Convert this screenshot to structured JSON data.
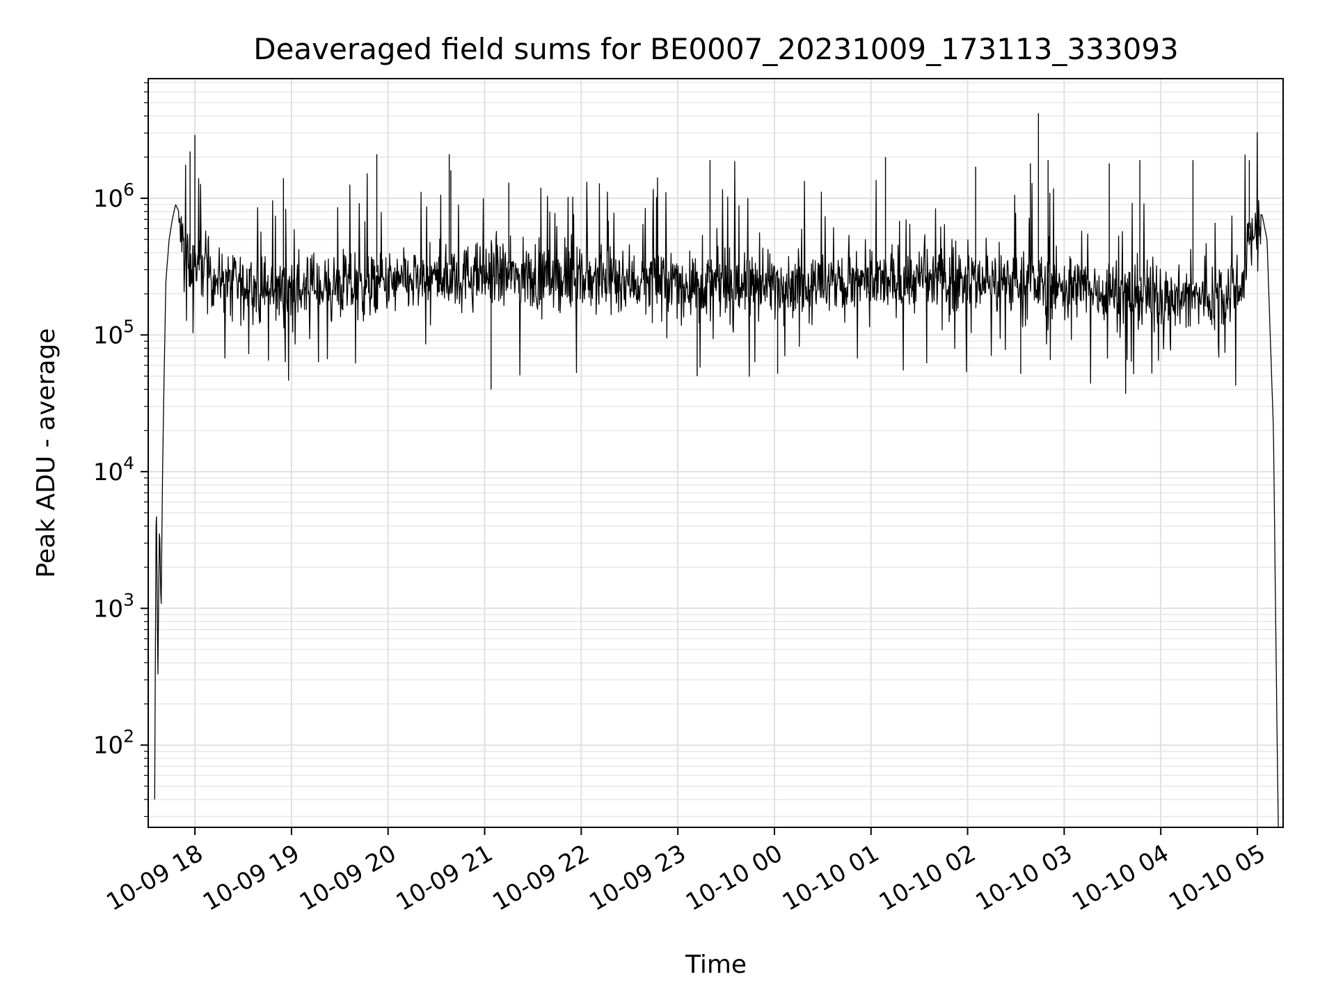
{
  "chart_data": {
    "type": "line",
    "title": "Deaveraged field sums for BE0007_20231009_173113_333093",
    "xlabel": "Time",
    "ylabel": "Peak ADU - average",
    "yscale": "log",
    "grid": true,
    "grid_minor": true,
    "xlim": [
      "2023-10-09 17:31",
      "2023-10-10 05:16"
    ],
    "ylim": [
      25,
      7500000
    ],
    "x_ticks": [
      {
        "value": "2023-10-09 18:00",
        "label": "10-09 18"
      },
      {
        "value": "2023-10-09 19:00",
        "label": "10-09 19"
      },
      {
        "value": "2023-10-09 20:00",
        "label": "10-09 20"
      },
      {
        "value": "2023-10-09 21:00",
        "label": "10-09 21"
      },
      {
        "value": "2023-10-09 22:00",
        "label": "10-09 22"
      },
      {
        "value": "2023-10-09 23:00",
        "label": "10-09 23"
      },
      {
        "value": "2023-10-10 00:00",
        "label": "10-10 00"
      },
      {
        "value": "2023-10-10 01:00",
        "label": "10-10 01"
      },
      {
        "value": "2023-10-10 02:00",
        "label": "10-10 02"
      },
      {
        "value": "2023-10-10 03:00",
        "label": "10-10 03"
      },
      {
        "value": "2023-10-10 04:00",
        "label": "10-10 04"
      },
      {
        "value": "2023-10-10 05:00",
        "label": "10-10 05"
      }
    ],
    "y_ticks": [
      {
        "value": 100,
        "base": "10",
        "exp": "2"
      },
      {
        "value": 1000,
        "base": "10",
        "exp": "3"
      },
      {
        "value": 10000,
        "base": "10",
        "exp": "4"
      },
      {
        "value": 100000,
        "base": "10",
        "exp": "5"
      },
      {
        "value": 1000000,
        "base": "10",
        "exp": "6"
      }
    ],
    "series_color": "#000000",
    "series": [
      {
        "x": [
          "2023-10-09 17:35",
          "2023-10-09 17:36",
          "2023-10-09 17:37",
          "2023-10-09 17:38",
          "2023-10-09 17:39",
          "2023-10-09 17:40",
          "2023-10-09 17:41",
          "2023-10-09 17:42",
          "2023-10-09 17:44",
          "2023-10-09 17:46",
          "2023-10-09 17:48",
          "2023-10-09 17:50",
          "2023-10-09 17:52",
          "2023-10-09 17:55",
          "2023-10-09 17:58",
          "2023-10-09 18:00",
          "2023-10-09 18:05",
          "2023-10-09 18:10",
          "2023-10-09 18:20",
          "2023-10-09 18:30",
          "2023-10-09 18:45",
          "2023-10-09 19:00",
          "2023-10-09 19:30",
          "2023-10-09 20:00",
          "2023-10-09 20:30",
          "2023-10-09 21:00",
          "2023-10-09 21:30",
          "2023-10-09 22:00",
          "2023-10-09 22:30",
          "2023-10-09 23:00",
          "2023-10-09 23:30",
          "2023-10-10 00:00",
          "2023-10-10 00:30",
          "2023-10-10 01:00",
          "2023-10-10 01:30",
          "2023-10-10 02:00",
          "2023-10-10 02:30",
          "2023-10-10 03:00",
          "2023-10-10 03:30",
          "2023-10-10 04:00",
          "2023-10-10 04:30",
          "2023-10-10 04:50",
          "2023-10-10 04:55",
          "2023-10-10 05:00",
          "2023-10-10 05:03",
          "2023-10-10 05:06",
          "2023-10-10 05:08",
          "2023-10-10 05:10",
          "2023-10-10 05:11",
          "2023-10-10 05:12",
          "2023-10-10 05:13"
        ],
        "y": [
          40,
          8000,
          300,
          4500,
          900,
          12000,
          60000,
          250000,
          500000,
          700000,
          900000,
          800000,
          600000,
          450000,
          400000,
          380000,
          420000,
          350000,
          300000,
          280000,
          260000,
          270000,
          280000,
          290000,
          320000,
          340000,
          330000,
          320000,
          310000,
          300000,
          280000,
          300000,
          290000,
          300000,
          310000,
          320000,
          300000,
          280000,
          260000,
          240000,
          230000,
          300000,
          600000,
          800000,
          750000,
          500000,
          100000,
          20000,
          2000,
          200,
          25
        ],
        "noise_range": [
          0.15,
          3.0
        ],
        "spikes": [
          {
            "x": "2023-10-09 18:00",
            "y": 2900000
          },
          {
            "x": "2023-10-09 17:57",
            "y": 2200000
          },
          {
            "x": "2023-10-09 18:55",
            "y": 1400000
          },
          {
            "x": "2023-10-09 19:53",
            "y": 2100000
          },
          {
            "x": "2023-10-09 20:38",
            "y": 2100000
          },
          {
            "x": "2023-10-09 20:39",
            "y": 1600000
          },
          {
            "x": "2023-10-09 21:04",
            "y": 40000
          },
          {
            "x": "2023-10-09 21:15",
            "y": 1300000
          },
          {
            "x": "2023-10-09 23:20",
            "y": 1900000
          },
          {
            "x": "2023-10-09 23:12",
            "y": 50000
          },
          {
            "x": "2023-10-10 00:02",
            "y": 52000
          },
          {
            "x": "2023-10-10 01:09",
            "y": 2000000
          },
          {
            "x": "2023-10-10 02:05",
            "y": 1700000
          },
          {
            "x": "2023-10-10 02:39",
            "y": 1800000
          },
          {
            "x": "2023-10-10 02:44",
            "y": 4200000
          },
          {
            "x": "2023-10-10 02:33",
            "y": 52000
          },
          {
            "x": "2023-10-10 02:50",
            "y": 1900000
          },
          {
            "x": "2023-10-10 03:28",
            "y": 1800000
          },
          {
            "x": "2023-10-10 03:47",
            "y": 1900000
          },
          {
            "x": "2023-10-10 04:20",
            "y": 1900000
          },
          {
            "x": "2023-10-10 04:55",
            "y": 1900000
          }
        ]
      }
    ]
  }
}
